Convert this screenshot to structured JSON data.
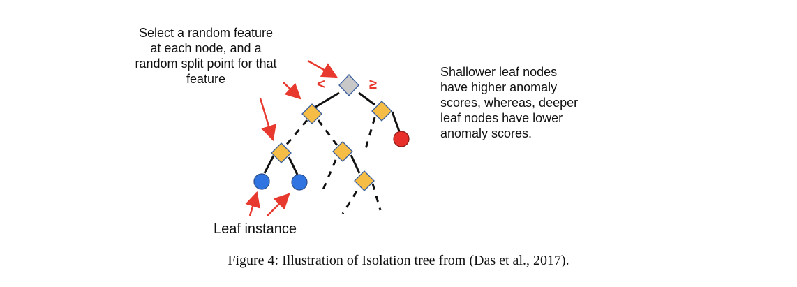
{
  "annotations": {
    "split_note": [
      "Select a random feature",
      "at each node, and a",
      "random split point for that",
      "feature"
    ],
    "depth_note": [
      "Shallower leaf nodes",
      "have higher anomaly",
      "scores, whereas, deeper",
      "leaf nodes have lower",
      "anomaly scores."
    ],
    "leaf_label": "Leaf instance",
    "less_than_symbol": "<",
    "greater_equal_symbol": "≥"
  },
  "caption": "Figure 4:  Illustration of Isolation tree from (Das et al., 2017).",
  "colors": {
    "root_node": "#c8c8c8",
    "split_node": "#f5bd45",
    "leaf_normal": "#2f74e0",
    "leaf_anomaly": "#e8302a",
    "arrow": "#e8392e",
    "edge": "#111111"
  }
}
